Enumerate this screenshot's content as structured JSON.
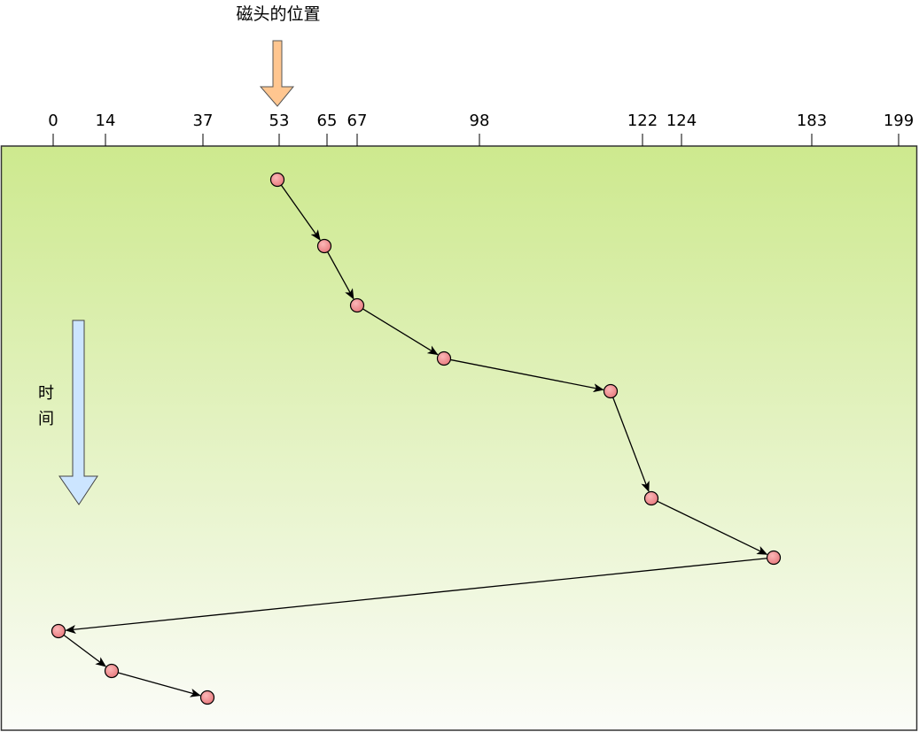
{
  "title": "磁头的位置",
  "time_label": [
    "时",
    "间"
  ],
  "axis": {
    "tracks": [
      0,
      14,
      37,
      53,
      65,
      67,
      98,
      122,
      124,
      183,
      199
    ]
  },
  "head_start": 53,
  "service_sequence": [
    53,
    65,
    67,
    98,
    122,
    124,
    183,
    0,
    14,
    37
  ],
  "colors": {
    "head_arrow": "#ffc690",
    "time_arrow": "#cce5ff",
    "background_top": "#cde98e",
    "background_bottom": "#fbfcf8",
    "point": "#f19c9c"
  }
}
